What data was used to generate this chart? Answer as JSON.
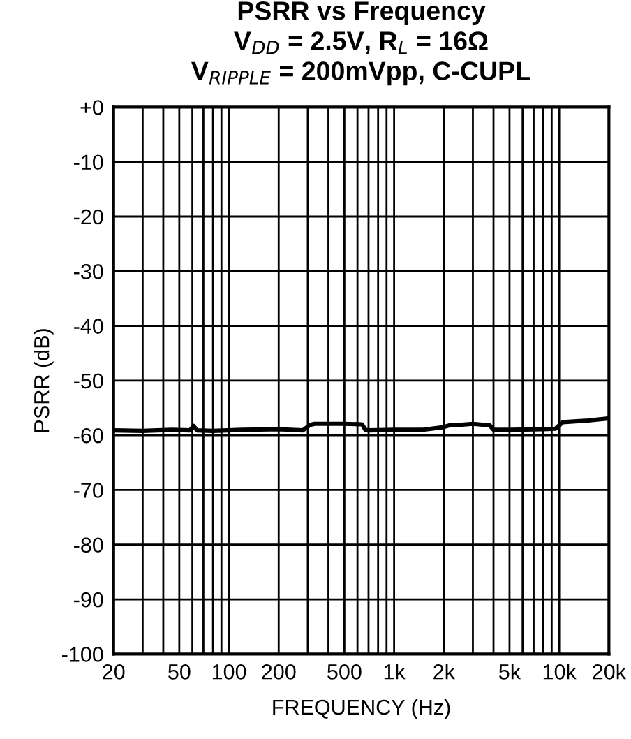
{
  "chart_data": {
    "type": "line",
    "title": "PSRR vs Frequency\nV$_{DD}$ = 2.5V, R$_{L}$ = 16Ω\nV$_{RIPPLE}$ = 200mVpp, C-CUPL",
    "xlabel": "FREQUENCY (Hz)",
    "ylabel": "PSRR (dB)",
    "log": "x",
    "grid": true,
    "xlim": [
      20,
      20000
    ],
    "ylim": [
      -100,
      0
    ],
    "xticks": [
      20,
      50,
      100,
      200,
      500,
      {
        "value": 1000,
        "label": "1k"
      },
      {
        "value": 2000,
        "label": "2k"
      },
      {
        "value": 5000,
        "label": "5k"
      },
      {
        "value": 10000,
        "label": "10k"
      },
      {
        "value": 20000,
        "label": "20k"
      }
    ],
    "yticks": [
      {
        "value": 0,
        "label": "+0"
      },
      -10,
      -20,
      -30,
      -40,
      -50,
      -60,
      -70,
      -80,
      -90,
      -100
    ],
    "series": [
      {
        "color": "#000000",
        "x": [
          20,
          30,
          45,
          58,
          61,
          64,
          80,
          120,
          200,
          280,
          310,
          330,
          500,
          640,
          670,
          700,
          1000,
          1500,
          2000,
          2200,
          2500,
          3000,
          3800,
          4000,
          5000,
          8000,
          9500,
          10500,
          15000,
          20000
        ],
        "values": [
          -59.1,
          -59.2,
          -59.0,
          -59.1,
          -58.3,
          -59.1,
          -59.2,
          -59.0,
          -58.9,
          -59.1,
          -58.1,
          -57.9,
          -57.9,
          -58.0,
          -59.0,
          -59.1,
          -59.0,
          -59.0,
          -58.5,
          -58.1,
          -58.1,
          -57.9,
          -58.2,
          -59.0,
          -59.0,
          -58.9,
          -58.8,
          -57.6,
          -57.3,
          -56.9
        ]
      }
    ]
  }
}
